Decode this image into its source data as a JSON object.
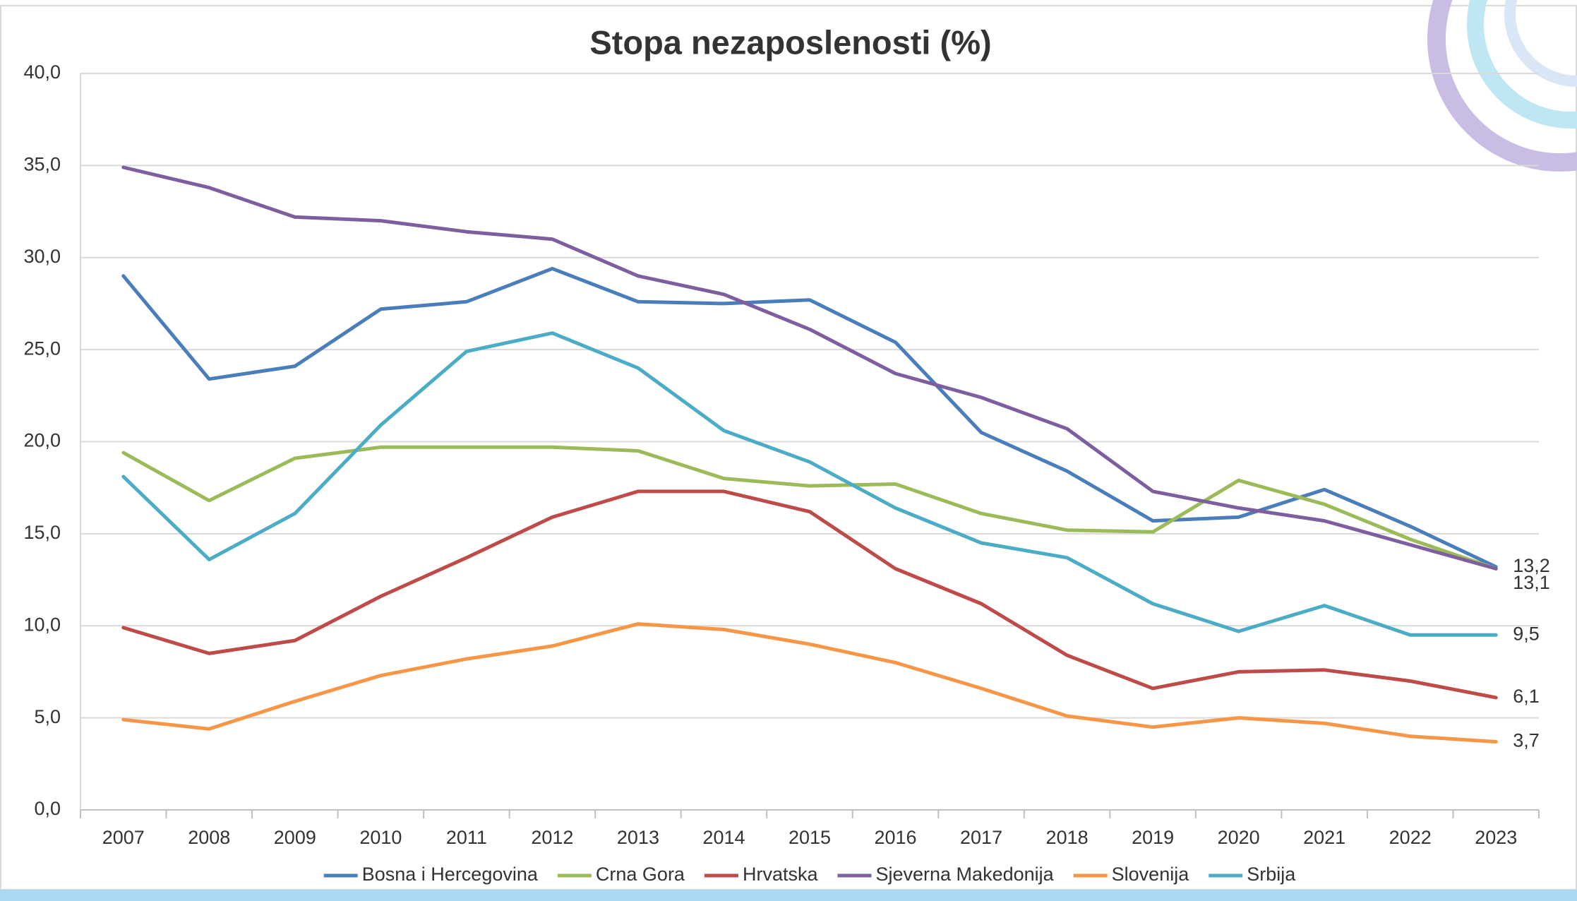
{
  "chart_data": {
    "type": "line",
    "title": "Stopa nezaposlenosti (%)",
    "categories": [
      "2007",
      "2008",
      "2009",
      "2010",
      "2011",
      "2012",
      "2013",
      "2014",
      "2015",
      "2016",
      "2017",
      "2018",
      "2019",
      "2020",
      "2021",
      "2022",
      "2023"
    ],
    "ylim": [
      0,
      40
    ],
    "yticks": [
      {
        "value": 0,
        "label": "0,0"
      },
      {
        "value": 5,
        "label": "5,0"
      },
      {
        "value": 10,
        "label": "10,0"
      },
      {
        "value": 15,
        "label": "15,0"
      },
      {
        "value": 20,
        "label": "20,0"
      },
      {
        "value": 25,
        "label": "25,0"
      },
      {
        "value": 30,
        "label": "30,0"
      },
      {
        "value": 35,
        "label": "35,0"
      },
      {
        "value": 40,
        "label": "40,0"
      }
    ],
    "grid": true,
    "legend": "bottom",
    "series": [
      {
        "name": "Bosna i Hercegovina",
        "color": "#4a7ebb",
        "values": [
          29.0,
          23.4,
          24.1,
          27.2,
          27.6,
          29.4,
          27.6,
          27.5,
          27.7,
          25.4,
          20.5,
          18.4,
          15.7,
          15.9,
          17.4,
          15.4,
          13.2
        ],
        "value_labels": [
          null,
          null,
          null,
          null,
          null,
          null,
          null,
          null,
          null,
          null,
          null,
          null,
          null,
          null,
          null,
          null,
          "13,2"
        ]
      },
      {
        "name": "Crna Gora",
        "color": "#9bbb59",
        "values": [
          19.4,
          16.8,
          19.1,
          19.7,
          19.7,
          19.7,
          19.5,
          18.0,
          17.6,
          17.7,
          16.1,
          15.2,
          15.1,
          17.9,
          16.6,
          14.7,
          13.1
        ]
      },
      {
        "name": "Hrvatska",
        "color": "#be4b48",
        "values": [
          9.9,
          8.5,
          9.2,
          11.6,
          13.7,
          15.9,
          17.3,
          17.3,
          16.2,
          13.1,
          11.2,
          8.4,
          6.6,
          7.5,
          7.6,
          7.0,
          6.1
        ],
        "value_labels": [
          null,
          null,
          null,
          null,
          null,
          null,
          null,
          null,
          null,
          null,
          null,
          null,
          null,
          null,
          null,
          null,
          "6,1"
        ]
      },
      {
        "name": "Sjeverna Makedonija",
        "color": "#7d5fa0",
        "values": [
          34.9,
          33.8,
          32.2,
          32.0,
          31.4,
          31.0,
          29.0,
          28.0,
          26.1,
          23.7,
          22.4,
          20.7,
          17.3,
          16.4,
          15.7,
          14.4,
          13.1
        ],
        "value_labels": [
          null,
          null,
          null,
          null,
          null,
          null,
          null,
          null,
          null,
          null,
          null,
          null,
          null,
          null,
          null,
          null,
          "13,1"
        ]
      },
      {
        "name": "Slovenija",
        "color": "#f79646",
        "values": [
          4.9,
          4.4,
          5.9,
          7.3,
          8.2,
          8.9,
          10.1,
          9.8,
          9.0,
          8.0,
          6.6,
          5.1,
          4.5,
          5.0,
          4.7,
          4.0,
          3.7
        ],
        "value_labels": [
          null,
          null,
          null,
          null,
          null,
          null,
          null,
          null,
          null,
          null,
          null,
          null,
          null,
          null,
          null,
          null,
          "3,7"
        ]
      },
      {
        "name": "Srbija",
        "color": "#4bacc6",
        "values": [
          18.1,
          13.6,
          16.1,
          20.9,
          24.9,
          25.9,
          24.0,
          20.6,
          18.9,
          16.4,
          14.5,
          13.7,
          11.2,
          9.7,
          11.1,
          9.5,
          9.5
        ],
        "value_labels": [
          null,
          null,
          null,
          null,
          null,
          null,
          null,
          null,
          null,
          null,
          null,
          null,
          null,
          null,
          null,
          null,
          "9,5"
        ]
      }
    ]
  }
}
